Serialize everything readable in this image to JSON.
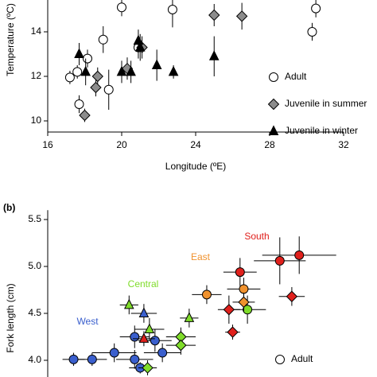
{
  "chart_data": [
    {
      "type": "scatter",
      "ylabel": "Temperature (ºC)",
      "xlabel": "Longitude (ºE)",
      "xlim": [
        16,
        32
      ],
      "xticks": [
        16,
        20,
        24,
        28,
        32
      ],
      "ylim": [
        9.5,
        15.5
      ],
      "yticks": [
        10,
        12,
        14
      ],
      "series": [
        {
          "name": "Adult",
          "marker": "circle",
          "color": "#ffffff",
          "x": [
            17.2,
            17.6,
            17.7,
            18.15,
            19.0,
            19.3,
            20.0,
            20.9,
            22.75,
            30.3,
            30.5
          ],
          "values": [
            11.95,
            12.2,
            10.75,
            12.8,
            13.65,
            11.4,
            15.1,
            13.3,
            15.0,
            14.0,
            15.05
          ],
          "yerr": [
            0.3,
            0.3,
            0.4,
            0.4,
            0.6,
            0.9,
            0.4,
            0.5,
            0.8,
            0.4,
            0.4
          ]
        },
        {
          "name": "Juvenile in summer",
          "marker": "diamond",
          "color": "#8c8c8c",
          "x": [
            18.0,
            18.6,
            18.7,
            20.3,
            21.1,
            25.0,
            26.5
          ],
          "values": [
            10.25,
            11.5,
            12.0,
            12.35,
            13.3,
            14.75,
            14.7
          ],
          "yerr": [
            0.3,
            0.4,
            0.4,
            0.5,
            0.5,
            0.5,
            0.6
          ]
        },
        {
          "name": "Juvenile in winter",
          "marker": "triangle",
          "color": "#000000",
          "x": [
            17.7,
            18.05,
            20.0,
            20.5,
            20.9,
            21.0,
            21.9,
            22.8,
            25.0
          ],
          "values": [
            13.0,
            12.2,
            12.2,
            12.2,
            13.6,
            13.3,
            12.5,
            12.2,
            12.9
          ],
          "yerr": [
            0.5,
            0.6,
            0.5,
            0.5,
            0.5,
            0.6,
            0.7,
            0.3,
            0.9
          ]
        }
      ]
    },
    {
      "type": "scatter",
      "panel_label": "(b)",
      "ylabel": "Fork length (cm)",
      "xlim": [
        16,
        32
      ],
      "ylim": [
        3.8,
        5.6
      ],
      "yticks": [
        {
          "value": 4,
          "label": "4.0"
        },
        {
          "value": 4.5,
          "label": "4.5"
        },
        {
          "value": 5,
          "label": "5.0"
        },
        {
          "value": 5.5,
          "label": "5.5"
        }
      ],
      "annotations": [
        {
          "text": "West",
          "color": "#3a5fcd"
        },
        {
          "text": "Central",
          "color": "#7fdc2a"
        },
        {
          "text": "East",
          "color": "#f0922e"
        },
        {
          "text": "South",
          "color": "#e0201c"
        }
      ],
      "legend": [
        {
          "label": "Adult",
          "marker": "circle"
        }
      ],
      "series": [
        {
          "marker": "circle",
          "color": "#3a5fcd",
          "x": [
            17.4,
            18.4,
            19.6,
            20.7,
            20.7,
            21.8,
            22.2,
            21.0
          ],
          "values": [
            4.01,
            4.01,
            4.08,
            4.25,
            4.01,
            4.21,
            4.08,
            3.92
          ],
          "xerr": [
            0.6,
            0.8,
            1.2,
            0.8,
            1.0,
            0.9,
            1.0,
            0.6
          ],
          "yerr": [
            0.07,
            0.07,
            0.1,
            0.12,
            0.1,
            0.12,
            0.1,
            0.06
          ]
        },
        {
          "marker": "triangle",
          "color": "#3a5fcd",
          "x": [
            21.2
          ],
          "values": [
            4.5
          ],
          "xerr": [
            0.7
          ],
          "yerr": [
            0.1
          ]
        },
        {
          "marker": "triangle",
          "color": "#7fdc2a",
          "x": [
            20.4,
            21.5,
            23.65
          ],
          "values": [
            4.59,
            4.33,
            4.45
          ],
          "xerr": [
            0.5,
            0.8,
            0.5
          ],
          "yerr": [
            0.1,
            0.12,
            0.1
          ]
        },
        {
          "marker": "diamond",
          "color": "#7fdc2a",
          "x": [
            23.2,
            23.2,
            21.4
          ],
          "values": [
            4.25,
            4.16,
            3.92
          ],
          "xerr": [
            0.8,
            0.8,
            0.5
          ],
          "yerr": [
            0.1,
            0.1,
            0.08
          ]
        },
        {
          "marker": "circle",
          "color": "#7fdc2a",
          "x": [
            26.8
          ],
          "values": [
            4.54
          ],
          "xerr": [
            1.0
          ],
          "yerr": [
            0.15
          ]
        },
        {
          "marker": "circle",
          "color": "#f0922e",
          "x": [
            24.6,
            26.6
          ],
          "values": [
            4.7,
            4.76
          ],
          "xerr": [
            0.8,
            0.9
          ],
          "yerr": [
            0.1,
            0.12
          ]
        },
        {
          "marker": "diamond",
          "color": "#f0922e",
          "x": [
            26.6
          ],
          "values": [
            4.62
          ],
          "xerr": [
            0.6
          ],
          "yerr": [
            0.1
          ]
        },
        {
          "marker": "triangle",
          "color": "#e0201c",
          "x": [
            21.2
          ],
          "values": [
            4.23
          ],
          "xerr": [
            0.6
          ],
          "yerr": [
            0.08
          ]
        },
        {
          "marker": "circle",
          "color": "#e0201c",
          "x": [
            26.4,
            28.55,
            29.6
          ],
          "values": [
            4.94,
            5.06,
            5.12
          ],
          "xerr": [
            0.9,
            1.4,
            2.0
          ],
          "yerr": [
            0.15,
            0.25,
            0.2
          ]
        },
        {
          "marker": "diamond",
          "color": "#e0201c",
          "x": [
            25.8,
            26.0,
            29.2
          ],
          "values": [
            4.54,
            4.3,
            4.68
          ],
          "xerr": [
            0.6,
            0.4,
            0.7
          ],
          "yerr": [
            0.15,
            0.08,
            0.1
          ]
        }
      ]
    }
  ]
}
